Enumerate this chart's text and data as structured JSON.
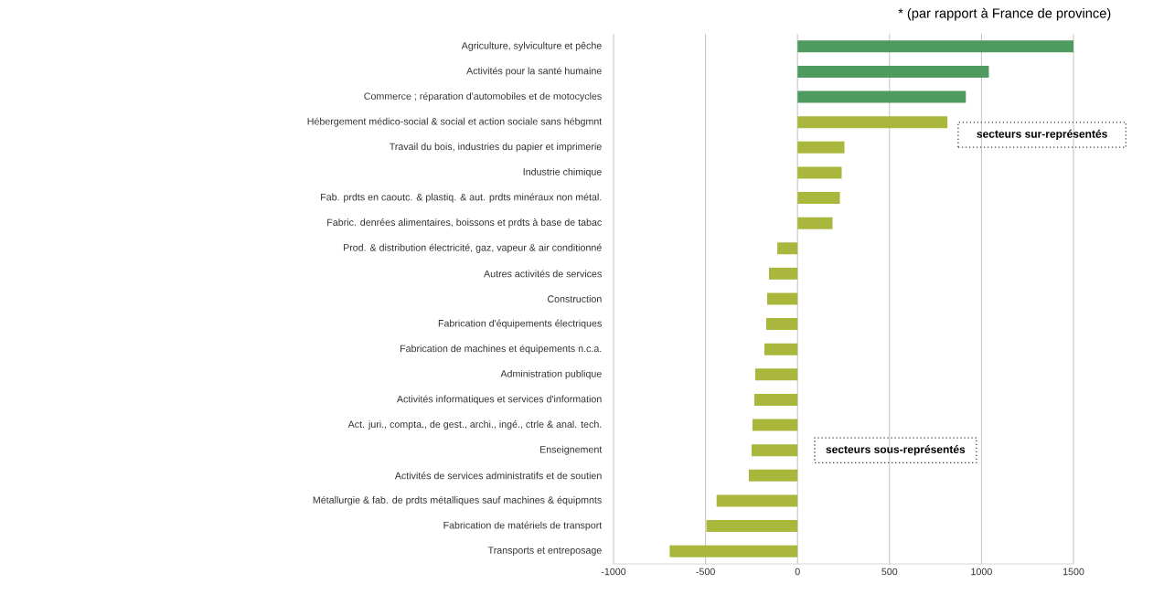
{
  "chart_data": {
    "type": "bar",
    "orientation": "horizontal",
    "categories": [
      "Agriculture, sylviculture et pêche",
      "Activités pour la santé humaine",
      "Commerce ; réparation d'automobiles et de motocycles",
      "Hébergement médico-social & social et action sociale sans hébgmnt",
      "Travail du bois, industries du papier et imprimerie",
      "Industrie chimique",
      "Fab. prdts en caoutc. & plastiq. & aut. prdts minéraux non métal.",
      "Fabric. denrées alimentaires, boissons et prdts à base de tabac",
      "Prod. & distribution électricité, gaz, vapeur & air conditionné",
      "Autres activités de services",
      "Construction",
      "Fabrication d'équipements électriques",
      "Fabrication de machines et équipements n.c.a.",
      "Administration publique",
      "Activités informatiques et services d'information",
      "Act. juri., compta., de gest., archi., ingé., ctrle & anal. tech.",
      "Enseignement",
      "Activités de services administratifs et de soutien",
      "Métallurgie & fab. de prdts métalliques sauf machines & équipmnts",
      "Fabrication de matériels de transport",
      "Transports et entreposage"
    ],
    "values": [
      1500,
      1040,
      915,
      815,
      255,
      240,
      230,
      190,
      -110,
      -155,
      -165,
      -170,
      -180,
      -230,
      -235,
      -245,
      -250,
      -265,
      -440,
      -495,
      -695
    ],
    "colors": [
      "#4f9a5f",
      "#4f9a5f",
      "#4f9a5f",
      "#a9b73c",
      "#a9b73c",
      "#a9b73c",
      "#a9b73c",
      "#a9b73c",
      "#a9b73c",
      "#a9b73c",
      "#a9b73c",
      "#a9b73c",
      "#a9b73c",
      "#a9b73c",
      "#a9b73c",
      "#a9b73c",
      "#a9b73c",
      "#a9b73c",
      "#a9b73c",
      "#a9b73c",
      "#a9b73c"
    ],
    "xlim": [
      -1000,
      1500
    ],
    "xticks": [
      -1000,
      -500,
      0,
      500,
      1000,
      1500
    ],
    "grid": "x",
    "annotations": [
      "* (par rapport à France de province)",
      "secteurs sur-représentés",
      "secteurs sous-représentés"
    ]
  }
}
